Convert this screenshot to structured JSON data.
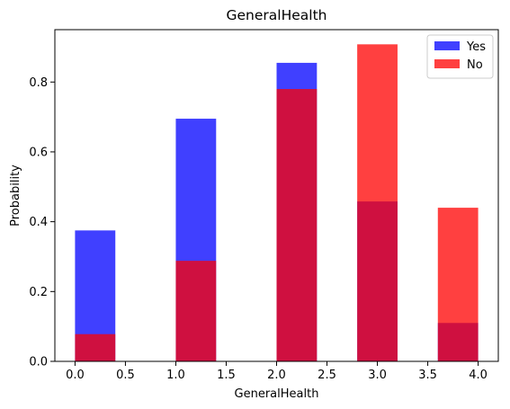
{
  "chart_data": {
    "type": "bar",
    "title": "GeneralHealth",
    "xlabel": "GeneralHealth",
    "ylabel": "Probability",
    "xlim": [
      -0.2,
      4.2
    ],
    "ylim": [
      0,
      0.95
    ],
    "x_ticks": [
      "0.0",
      "0.5",
      "1.0",
      "1.5",
      "2.0",
      "2.5",
      "3.0",
      "3.5",
      "4.0"
    ],
    "x_tick_values": [
      0,
      0.5,
      1,
      1.5,
      2,
      2.5,
      3,
      3.5,
      4
    ],
    "y_ticks": [
      "0.0",
      "0.2",
      "0.4",
      "0.6",
      "0.8"
    ],
    "y_tick_values": [
      0,
      0.2,
      0.4,
      0.6,
      0.8
    ],
    "bin_edges": [
      0,
      0.4,
      1.0,
      1.4,
      2.0,
      2.4,
      2.8,
      3.2,
      3.6,
      4.0
    ],
    "series": [
      {
        "name": "Yes",
        "color": "#0000ff",
        "opacity": 0.75,
        "values": [
          0.375,
          0,
          0.695,
          0,
          0.855,
          0,
          0.458,
          0,
          0.11
        ]
      },
      {
        "name": "No",
        "color": "#ff0000",
        "opacity": 0.75,
        "values": [
          0.078,
          0,
          0.288,
          0,
          0.78,
          0,
          0.908,
          0,
          0.44
        ]
      }
    ],
    "legend_position": "top-right",
    "grid": false
  }
}
